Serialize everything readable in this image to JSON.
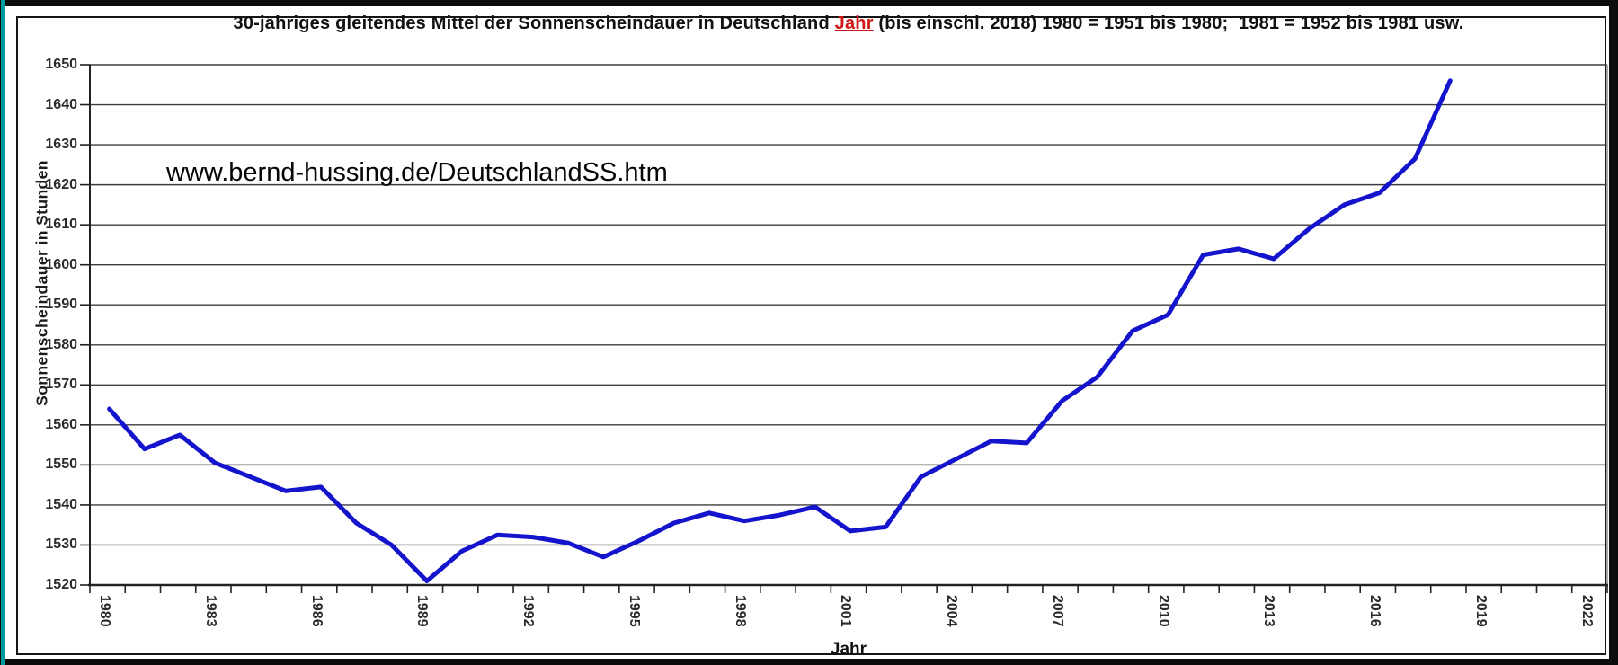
{
  "title": {
    "part1": "30-jähriges gleitendes Mittel der Sonnenscheindauer in Deutschland ",
    "link": "Jahr",
    "part2": " (bis einschl. 2018) 1980 = 1951 bis 1980;  1981 = 1952 bis 1981 usw."
  },
  "watermark": "www.bernd-hussing.de/DeutschlandSS.htm",
  "colors": {
    "accent_stripe": "#009a9b",
    "outer_frame": "#0c0c0c",
    "background": "#ffffff",
    "grid": "#3d3d3d",
    "axis": "#222222",
    "plot_border": "#8a8a8a",
    "tick_label": "#2b2b2b",
    "title_highlight": "#d01616",
    "line": "#1414cd"
  },
  "chart_data": {
    "type": "line",
    "title": "30-jähriges gleitendes Mittel der Sonnenscheindauer in Deutschland Jahr (bis einschl. 2018) 1980 = 1951 bis 1980;  1981 = 1952 bis 1981 usw.",
    "xlabel": "Jahr",
    "ylabel": "Sonnenscheindauer in Stunden",
    "x_range": [
      1980,
      2023
    ],
    "ylim": [
      1520,
      1650
    ],
    "y_tick_step": 10,
    "grid": "horizontal",
    "legend": "none",
    "y_tick_labels": [
      "1520",
      "1530",
      "1540",
      "1550",
      "1560",
      "1570",
      "1580",
      "1590",
      "1600",
      "1610",
      "1620",
      "1630",
      "1640",
      "1650"
    ],
    "x_tick_labels": [
      "1980",
      "1983",
      "1986",
      "1989",
      "1992",
      "1995",
      "1998",
      "2001",
      "2004",
      "2007",
      "2010",
      "2013",
      "2016",
      "2019",
      "2022"
    ],
    "x_tick_label_step": 3,
    "series": [
      {
        "name": "30-jähriges gleitendes Mittel der Sonnenscheindauer",
        "x": [
          1980,
          1981,
          1982,
          1983,
          1984,
          1985,
          1986,
          1987,
          1988,
          1989,
          1990,
          1991,
          1992,
          1993,
          1994,
          1995,
          1996,
          1997,
          1998,
          1999,
          2000,
          2001,
          2002,
          2003,
          2004,
          2005,
          2006,
          2007,
          2008,
          2009,
          2010,
          2011,
          2012,
          2013,
          2014,
          2015,
          2016,
          2017,
          2018
        ],
        "values": [
          1564,
          1554,
          1557.5,
          1550.5,
          1547,
          1543.5,
          1544.5,
          1535.5,
          1530,
          1521,
          1528.5,
          1532.5,
          1532,
          1530.5,
          1527,
          1531,
          1535.5,
          1538,
          1536,
          1537.5,
          1539.5,
          1533.5,
          1534.5,
          1547,
          1551.5,
          1556,
          1555.5,
          1566,
          1572,
          1583.5,
          1587.5,
          1602.5,
          1604,
          1601.5,
          1609,
          1615,
          1618,
          1626.5,
          1646
        ]
      }
    ]
  }
}
